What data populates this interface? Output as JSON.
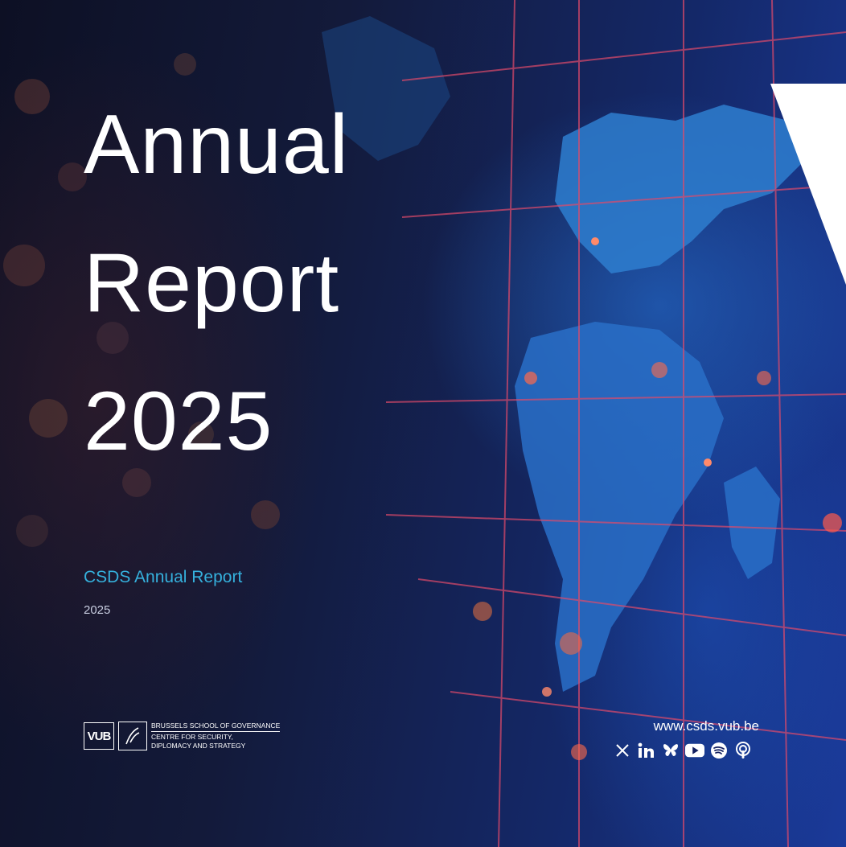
{
  "cover": {
    "title_lines": [
      "Annual",
      "Report",
      "2025"
    ],
    "subtitle": "CSDS Annual Report",
    "year": "2025"
  },
  "logo": {
    "mark": "VUB",
    "line1": "BRUSSELS SCHOOL OF GOVERNANCE",
    "line2": "CENTRE FOR SECURITY,",
    "line3": "DIPLOMACY AND STRATEGY"
  },
  "footer": {
    "url": "www.csds.vub.be",
    "socials": [
      "x-icon",
      "linkedin-icon",
      "bluesky-icon",
      "youtube-icon",
      "spotify-icon",
      "podcast-icon"
    ]
  },
  "colors": {
    "accent": "#35b0dc",
    "background": "#0a1230",
    "grid_lines": "#e04a6a"
  }
}
